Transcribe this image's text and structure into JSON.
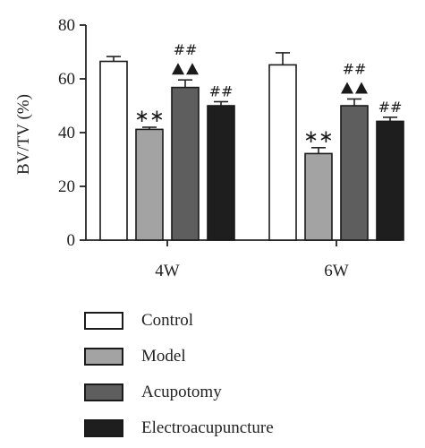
{
  "chart_data": {
    "type": "bar",
    "ylabel": "BV/TV (%)",
    "ylim": [
      0,
      80
    ],
    "yticks": [
      0,
      20,
      40,
      60,
      80
    ],
    "categories": [
      "4W",
      "6W"
    ],
    "series": [
      {
        "name": "Control",
        "color": "#ffffff",
        "values": [
          66.5,
          65.2
        ],
        "errors": [
          1.8,
          4.5
        ],
        "annotations": [
          "",
          ""
        ]
      },
      {
        "name": "Model",
        "color": "#a3a3a3",
        "values": [
          41.2,
          32.2
        ],
        "errors": [
          0.8,
          2.2
        ],
        "annotations": [
          "**",
          "**"
        ]
      },
      {
        "name": "Acupotomy",
        "color": "#5e5e5e",
        "values": [
          56.8,
          50.0
        ],
        "errors": [
          2.8,
          2.5
        ],
        "annotations": [
          "▲▲ ##",
          "▲▲ ##"
        ]
      },
      {
        "name": "Electroacupuncture",
        "color": "#1e1e1e",
        "values": [
          50.0,
          44.2
        ],
        "errors": [
          1.5,
          1.5
        ],
        "annotations": [
          "##",
          "##"
        ]
      }
    ],
    "grid": false,
    "legend_position": "bottom"
  }
}
